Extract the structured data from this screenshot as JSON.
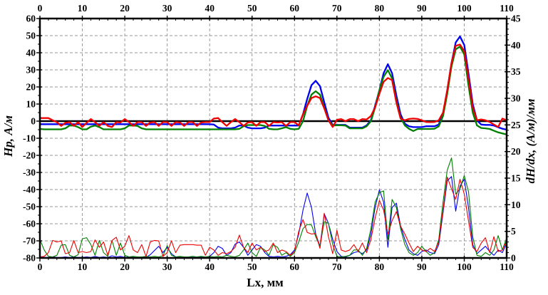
{
  "chart_data": {
    "type": "line",
    "title": "",
    "grid": {
      "show": true,
      "color": "#999999",
      "dash": [
        4,
        3
      ]
    },
    "background": "#ffffff",
    "frame_color": "#000000",
    "x_axis": {
      "label": "Lx, мм",
      "min": 0,
      "max": 110,
      "major_tick": 10,
      "minor_tick": 2,
      "tick_labels": [
        0,
        10,
        20,
        30,
        40,
        50,
        60,
        70,
        80,
        90,
        100,
        110
      ],
      "labels_shown": "top and bottom"
    },
    "y_left": {
      "label": "Hp, А/м",
      "min": -80,
      "max": 60,
      "major_tick": 10,
      "minor_tick": 5,
      "tick_labels": [
        60,
        50,
        40,
        30,
        20,
        10,
        0,
        -10,
        -20,
        -30,
        -40,
        -50,
        -60,
        -70,
        -80
      ]
    },
    "y_right": {
      "label": "dH/dx, (А/м)/мм",
      "min": 0,
      "max": 45,
      "major_tick": 5,
      "minor_tick": 1,
      "tick_labels": [
        45,
        40,
        35,
        30,
        25,
        20,
        15,
        10,
        5,
        0
      ]
    },
    "zero_line": {
      "axis": "left",
      "value": 0,
      "color": "#000000",
      "width": 2.4
    },
    "x": {
      "start": 0,
      "step": 1,
      "count": 111
    },
    "series": [
      {
        "name": "Hp-blue",
        "axis": "left",
        "color": "#0000f0",
        "width": 2.3,
        "values": [
          -1.8,
          -1.8,
          -1.8,
          -1.8,
          -1.8,
          -1.8,
          -1.8,
          -1.8,
          -1.8,
          -1.8,
          -1.8,
          -1.8,
          -1.8,
          -1.8,
          -1.8,
          -1.8,
          -1.8,
          -1.8,
          -1.8,
          -1.8,
          -1.8,
          -1.8,
          -1.8,
          -1.8,
          -1.8,
          -1.8,
          -1.8,
          -1.8,
          -1.8,
          -1.8,
          -1.8,
          -1.8,
          -1.8,
          -1.8,
          -1.8,
          -1.8,
          -1.8,
          -1.8,
          -1.8,
          -1.8,
          -1.8,
          -2.0,
          -3.8,
          -4.2,
          -4.2,
          -4.2,
          -3.8,
          -2.6,
          -2.6,
          -3.8,
          -4.2,
          -4.2,
          -4.2,
          -3.8,
          -2.6,
          -2.6,
          -2.6,
          -2.6,
          -2.6,
          -2.6,
          -2.6,
          -2.6,
          4.0,
          13.0,
          21.0,
          23.6,
          20.5,
          11.0,
          2.0,
          -2.2,
          -2.2,
          -2.2,
          -2.2,
          -3.8,
          -3.8,
          -3.8,
          -3.8,
          -2.5,
          0.5,
          9.0,
          18.0,
          28.0,
          33.3,
          28.0,
          15.0,
          4.0,
          -1.5,
          -3.0,
          -3.5,
          -3.5,
          -3.5,
          -3.0,
          -3.0,
          -3.0,
          -2.0,
          4.0,
          18.0,
          34.0,
          46.0,
          49.5,
          44.5,
          28.0,
          10.0,
          0.5,
          -2.0,
          -2.2,
          -2.2,
          -2.6,
          -3.6,
          -4.4,
          -5.0
        ]
      },
      {
        "name": "Hp-green",
        "axis": "left",
        "color": "#008000",
        "width": 2.3,
        "values": [
          -4.6,
          -4.8,
          -4.8,
          -4.8,
          -4.8,
          -4.8,
          -4.2,
          -2.6,
          -2.6,
          -3.5,
          -4.8,
          -4.8,
          -3.2,
          -2.6,
          -3.5,
          -4.8,
          -4.8,
          -4.8,
          -4.8,
          -4.8,
          -4.2,
          -2.6,
          -2.6,
          -2.8,
          -4.2,
          -4.8,
          -4.8,
          -4.8,
          -4.8,
          -4.8,
          -4.8,
          -4.8,
          -4.8,
          -4.8,
          -4.8,
          -4.8,
          -4.8,
          -4.8,
          -4.8,
          -4.8,
          -4.8,
          -4.8,
          -4.8,
          -4.8,
          -4.8,
          -4.8,
          -4.8,
          -4.5,
          -3.0,
          -2.3,
          -2.3,
          -2.3,
          -2.3,
          -2.8,
          -4.5,
          -4.8,
          -4.8,
          -4.2,
          -3.5,
          -4.5,
          -4.8,
          -4.5,
          0.0,
          9.0,
          15.5,
          17.5,
          15.5,
          8.0,
          0.5,
          -2.6,
          -2.4,
          -2.4,
          -2.6,
          -4.2,
          -4.2,
          -4.2,
          -4.2,
          -3.0,
          0.0,
          8.0,
          18.0,
          26.0,
          29.8,
          25.0,
          12.0,
          2.0,
          -2.5,
          -4.5,
          -5.8,
          -4.6,
          -4.6,
          -4.6,
          -4.6,
          -4.4,
          -3.0,
          3.0,
          16.0,
          32.0,
          42.0,
          43.6,
          39.0,
          21.0,
          5.0,
          -2.5,
          -4.0,
          -4.2,
          -4.6,
          -5.6,
          -6.6,
          -7.2,
          -7.8
        ]
      },
      {
        "name": "Hp-red",
        "axis": "left",
        "color": "#ee0000",
        "width": 2.3,
        "values": [
          1.8,
          1.8,
          1.8,
          0.5,
          -0.6,
          -2.8,
          -1.0,
          -0.6,
          -2.8,
          -0.6,
          -3.4,
          -1.0,
          1.2,
          -0.6,
          -2.8,
          -0.6,
          -2.8,
          -3.4,
          -0.6,
          -0.8,
          1.2,
          -0.6,
          -2.8,
          -0.6,
          -0.6,
          -2.8,
          -0.8,
          -0.6,
          -2.8,
          -0.6,
          -0.6,
          -2.8,
          -0.6,
          -0.8,
          -2.8,
          -0.6,
          -0.6,
          -2.8,
          -0.8,
          -0.6,
          -0.6,
          1.5,
          1.8,
          -0.6,
          -2.8,
          -0.6,
          1.2,
          -0.6,
          -2.8,
          -0.8,
          -0.6,
          -2.8,
          -0.6,
          -0.6,
          -2.8,
          -0.6,
          -0.8,
          -0.6,
          -2.8,
          -0.6,
          -0.6,
          -2.5,
          4.0,
          9.0,
          13.5,
          14.5,
          13.5,
          7.5,
          0.5,
          -3.4,
          0.8,
          1.2,
          0.0,
          1.2,
          1.2,
          0.0,
          1.2,
          1.0,
          3.0,
          8.0,
          16.0,
          23.0,
          25.2,
          24.0,
          11.0,
          1.5,
          0.5,
          1.3,
          1.5,
          1.3,
          0.5,
          -0.5,
          -0.6,
          -0.5,
          0.5,
          5.0,
          18.0,
          34.0,
          44.0,
          44.8,
          41.0,
          25.0,
          8.0,
          0.5,
          1.0,
          0.5,
          -0.5,
          -2.0,
          -3.4,
          1.5,
          0.5
        ]
      },
      {
        "name": "dHdx-blue",
        "axis": "right",
        "color": "#0000f0",
        "width": 1.1,
        "values": [
          0.2,
          0.1,
          0.1,
          0.2,
          0.1,
          0.1,
          0.2,
          0.1,
          0.2,
          0.1,
          0.1,
          0.2,
          0.1,
          0.3,
          0.1,
          0.2,
          0.1,
          0.4,
          0.2,
          0.3,
          0.1,
          0.2,
          0.1,
          0.1,
          0.2,
          0.1,
          0.6,
          1.4,
          2.2,
          1.0,
          2.0,
          0.8,
          0.2,
          0.1,
          0.1,
          0.2,
          0.1,
          0.1,
          0.2,
          0.1,
          0.3,
          1.0,
          2.2,
          1.8,
          0.5,
          1.0,
          2.6,
          3.0,
          2.0,
          0.5,
          1.5,
          2.5,
          2.2,
          1.0,
          0.3,
          0.2,
          0.3,
          0.2,
          0.3,
          0.6,
          1.5,
          4.5,
          9.0,
          12.2,
          9.5,
          4.5,
          2.2,
          8.3,
          6.5,
          3.5,
          1.2,
          0.3,
          0.2,
          0.5,
          1.0,
          1.2,
          0.8,
          1.5,
          4.5,
          9.5,
          12.8,
          10.5,
          2.0,
          9.5,
          10.3,
          6.0,
          3.5,
          1.5,
          0.8,
          0.5,
          1.2,
          1.5,
          1.0,
          0.8,
          2.5,
          8.5,
          14.5,
          15.3,
          8.8,
          13.5,
          14.8,
          9.5,
          2.5,
          0.8,
          1.5,
          2.2,
          1.2,
          0.5,
          1.5,
          1.0,
          2.8
        ]
      },
      {
        "name": "dHdx-green",
        "axis": "right",
        "color": "#008000",
        "width": 1.1,
        "values": [
          3.5,
          1.5,
          0.3,
          0.2,
          0.5,
          2.4,
          2.5,
          0.5,
          0.2,
          0.6,
          3.6,
          3.8,
          2.5,
          0.5,
          3.3,
          1.0,
          0.3,
          3.3,
          0.5,
          2.8,
          0.5,
          0.2,
          0.3,
          0.2,
          0.2,
          0.3,
          0.2,
          0.3,
          0.2,
          0.4,
          2.3,
          0.5,
          0.2,
          0.3,
          0.2,
          0.2,
          0.3,
          0.2,
          0.3,
          0.2,
          0.3,
          0.2,
          0.3,
          0.2,
          0.5,
          0.3,
          0.2,
          0.5,
          1.5,
          2.8,
          1.0,
          0.3,
          2.0,
          1.5,
          0.5,
          2.5,
          2.0,
          0.5,
          1.0,
          0.3,
          1.0,
          3.0,
          5.5,
          6.3,
          6.2,
          4.0,
          2.2,
          6.8,
          6.5,
          2.5,
          0.3,
          0.2,
          0.3,
          0.5,
          1.5,
          1.5,
          0.5,
          1.8,
          5.5,
          10.5,
          12.3,
          12.6,
          3.5,
          11.0,
          9.5,
          5.5,
          2.5,
          1.0,
          0.5,
          1.0,
          2.2,
          1.2,
          0.5,
          1.0,
          3.5,
          10.5,
          16.5,
          18.8,
          12.0,
          13.0,
          15.5,
          12.5,
          4.0,
          0.5,
          0.3,
          1.0,
          0.5,
          1.5,
          4.2,
          1.5,
          3.8
        ]
      },
      {
        "name": "dHdx-red",
        "axis": "right",
        "color": "#ee0000",
        "width": 1.1,
        "values": [
          0.2,
          0.3,
          1.0,
          3.3,
          3.0,
          3.2,
          0.8,
          1.0,
          3.3,
          1.0,
          1.2,
          1.0,
          1.2,
          3.4,
          2.0,
          3.0,
          0.5,
          3.3,
          3.9,
          1.5,
          2.2,
          4.2,
          1.5,
          1.0,
          2.5,
          0.3,
          3.0,
          3.3,
          3.2,
          0.3,
          1.0,
          3.2,
          1.0,
          2.4,
          2.5,
          2.5,
          2.5,
          2.4,
          2.4,
          0.5,
          2.0,
          1.5,
          0.5,
          1.0,
          0.8,
          1.2,
          2.0,
          4.3,
          2.0,
          1.0,
          2.8,
          1.5,
          2.0,
          1.2,
          1.5,
          2.8,
          1.0,
          1.5,
          1.2,
          0.5,
          1.2,
          5.0,
          7.2,
          4.8,
          4.5,
          4.6,
          1.8,
          8.4,
          4.0,
          0.8,
          5.2,
          1.5,
          1.2,
          1.5,
          2.5,
          1.2,
          2.8,
          1.0,
          3.5,
          7.5,
          10.8,
          9.0,
          4.5,
          7.0,
          8.7,
          6.0,
          4.5,
          2.8,
          1.2,
          2.2,
          1.5,
          1.2,
          1.8,
          1.2,
          3.0,
          9.0,
          15.2,
          13.0,
          11.0,
          14.8,
          12.0,
          7.0,
          2.0,
          1.2,
          2.8,
          3.8,
          1.0,
          4.0,
          1.2,
          1.5,
          3.2
        ]
      }
    ]
  }
}
